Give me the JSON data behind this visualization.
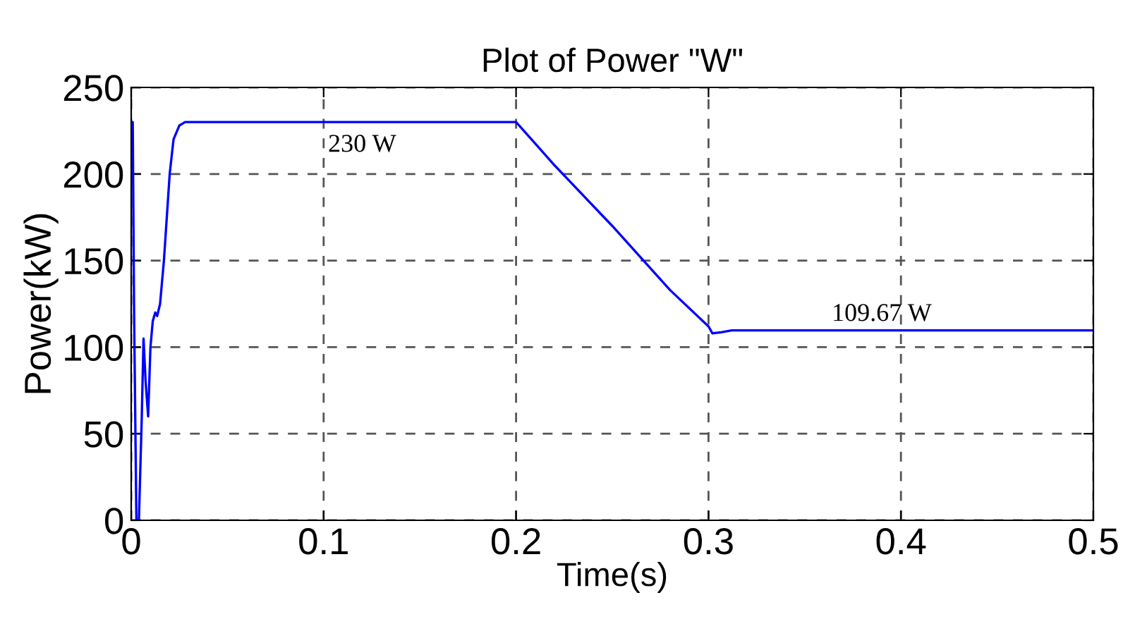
{
  "chart_data": {
    "type": "line",
    "title": "Plot of Power \"W\"",
    "xlabel": "Time(s)",
    "ylabel": "Power(kW)",
    "series": [
      {
        "color": "#0000ff",
        "x": [
          0,
          0.0008,
          0.0015,
          0.0027,
          0.004,
          0.0055,
          0.0064,
          0.0075,
          0.0088,
          0.01,
          0.0112,
          0.0125,
          0.0135,
          0.015,
          0.017,
          0.02,
          0.022,
          0.025,
          0.028,
          0.05,
          0.1,
          0.15,
          0.2,
          0.22,
          0.25,
          0.28,
          0.3,
          0.302,
          0.306,
          0.312,
          0.35,
          0.4,
          0.45,
          0.5
        ],
        "values": [
          230,
          230,
          120,
          0,
          0,
          60,
          105,
          80,
          60,
          100,
          115,
          120,
          118,
          125,
          150,
          200,
          220,
          228,
          230,
          230,
          230,
          230,
          230,
          205,
          170,
          133,
          112,
          108,
          108.5,
          109.67,
          109.67,
          109.67,
          109.67,
          109.67
        ]
      }
    ],
    "xlim": [
      0,
      0.5
    ],
    "ylim": [
      0,
      250
    ],
    "xticks": [
      0,
      0.1,
      0.2,
      0.3,
      0.4,
      0.5
    ],
    "yticks": [
      0,
      50,
      100,
      150,
      200,
      250
    ],
    "grid": true,
    "line_style": "solid",
    "annotations": [
      {
        "text": "230 W",
        "x": 0.12,
        "y": 230
      },
      {
        "text": "109.67 W",
        "x": 0.39,
        "y": 109.67
      }
    ]
  }
}
